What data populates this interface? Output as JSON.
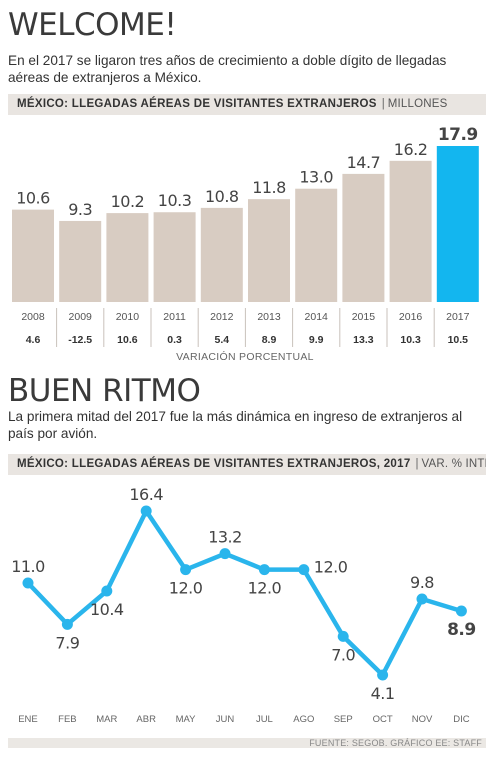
{
  "section1": {
    "title": "WELCOME!",
    "subtitle": "En el 2017 se ligaron tres años de crecimiento a doble dígito de llegadas aéreas de extranjeros a México.",
    "band_title": "MÉXICO: LLEGADAS AÉREAS DE VISITANTES EXTRANJEROS",
    "band_separator": "|",
    "band_unit": "MILLONES",
    "variation_label": "VARIACIÓN PORCENTUAL"
  },
  "section2": {
    "title": "BUEN RITMO",
    "subtitle": "La primera mitad del 2017 fue la más dinámica en ingreso de extranjeros al país por avión.",
    "band_title": "MÉXICO: LLEGADAS AÉREAS DE VISITANTES EXTRANJEROS, 2017",
    "band_separator": "|",
    "band_unit": "VAR. % INTERANUAL"
  },
  "footer": "FUENTE: SEGOB. GRÁFICO EE: STAFF",
  "colors": {
    "bar": "#d8ccc2",
    "highlight": "#13b6ef",
    "line": "#2ab5ec",
    "band": "#e9e5e1"
  },
  "chart_data": [
    {
      "type": "bar",
      "categories": [
        "2008",
        "2009",
        "2010",
        "2011",
        "2012",
        "2013",
        "2014",
        "2015",
        "2016",
        "2017"
      ],
      "values": [
        10.6,
        9.3,
        10.2,
        10.3,
        10.8,
        11.8,
        13.0,
        14.7,
        16.2,
        17.9
      ],
      "value_labels": [
        "10.6",
        "9.3",
        "10.2",
        "10.3",
        "10.8",
        "11.8",
        "13.0",
        "14.7",
        "16.2",
        "17.9"
      ],
      "variation": [
        "4.6",
        "-12.5",
        "10.6",
        "0.3",
        "5.4",
        "8.9",
        "9.9",
        "13.3",
        "10.3",
        "10.5"
      ],
      "highlight_index": 9,
      "ylim": [
        0,
        17.9
      ]
    },
    {
      "type": "line",
      "categories": [
        "ENE",
        "FEB",
        "MAR",
        "ABR",
        "MAY",
        "JUN",
        "JUL",
        "AGO",
        "SEP",
        "OCT",
        "NOV",
        "DIC"
      ],
      "values": [
        11.0,
        7.9,
        10.4,
        16.4,
        12.0,
        13.2,
        12.0,
        12.0,
        7.0,
        4.1,
        9.8,
        8.9
      ],
      "value_labels": [
        "11.0",
        "7.9",
        "10.4",
        "16.4",
        "12.0",
        "13.2",
        "12.0",
        "12.0",
        "7.0",
        "4.1",
        "9.8",
        "8.9"
      ],
      "label_position": [
        "above",
        "below",
        "below",
        "above",
        "below",
        "above",
        "below",
        "right",
        "below",
        "below",
        "above",
        "below"
      ],
      "highlight_index": 11,
      "ylim": [
        4.1,
        16.4
      ]
    }
  ]
}
